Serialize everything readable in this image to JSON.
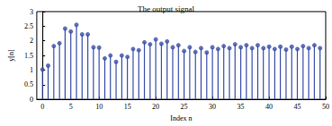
{
  "chart_data": {
    "type": "stem",
    "title": "The output signal",
    "x_label": "Index n",
    "y_label": "y[n]",
    "x": [
      0,
      1,
      2,
      3,
      4,
      5,
      6,
      7,
      8,
      9,
      10,
      11,
      12,
      13,
      14,
      15,
      16,
      17,
      18,
      19,
      20,
      21,
      22,
      23,
      24,
      25,
      26,
      27,
      28,
      29,
      30,
      31,
      32,
      33,
      34,
      35,
      36,
      37,
      38,
      39,
      40,
      41,
      42,
      43,
      44,
      45,
      46,
      47,
      48,
      49
    ],
    "values": [
      1.02,
      1.15,
      1.82,
      1.92,
      2.42,
      2.32,
      2.55,
      2.22,
      2.22,
      1.78,
      1.77,
      1.4,
      1.5,
      1.28,
      1.5,
      1.45,
      1.72,
      1.68,
      1.95,
      1.88,
      2.05,
      1.9,
      1.98,
      1.78,
      1.85,
      1.65,
      1.78,
      1.62,
      1.75,
      1.6,
      1.78,
      1.72,
      1.82,
      1.75,
      1.88,
      1.78,
      1.85,
      1.75,
      1.85,
      1.75,
      1.8,
      1.72,
      1.8,
      1.7,
      1.8,
      1.72,
      1.82,
      1.75,
      1.85,
      1.75
    ],
    "color": "#3b4fa8",
    "marker": "circle",
    "xlim": [
      -1,
      50
    ],
    "xticks": [
      0,
      5,
      10,
      15,
      20,
      25,
      30,
      35,
      40,
      45,
      50
    ],
    "ylim": [
      0,
      3
    ],
    "yticks": [
      0,
      0.5,
      1,
      1.5,
      2,
      2.5,
      3
    ],
    "grid": false
  }
}
